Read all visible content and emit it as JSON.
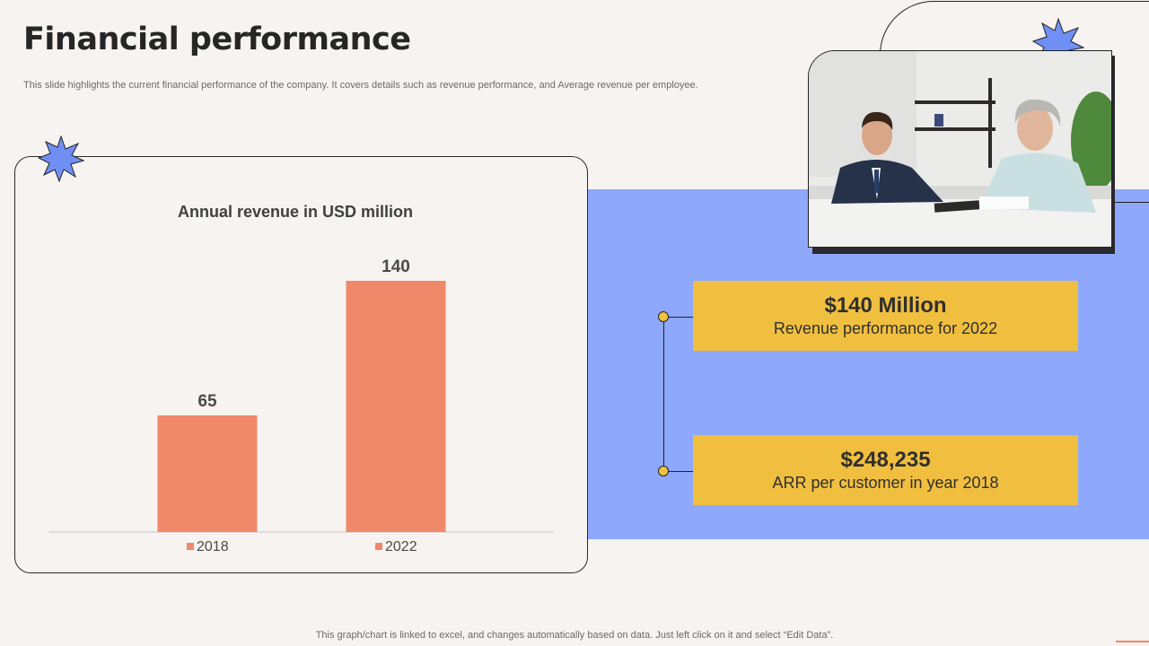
{
  "header": {
    "title": "Financial performance",
    "subtitle": "This slide highlights the current financial performance of the company. It covers details such as revenue performance, and Average revenue per employee."
  },
  "chart_data": {
    "type": "bar",
    "title": "Annual revenue in USD million",
    "categories": [
      "2018",
      "2022"
    ],
    "values": [
      65,
      140
    ],
    "data_labels": [
      "65",
      "140"
    ],
    "legend": [
      "2018",
      "2022"
    ],
    "legend_placement": "bottom",
    "ylim": [
      0,
      150
    ],
    "grid": false,
    "bar_color": "#f0896a"
  },
  "stats": [
    {
      "value": "$140 Million",
      "label": "Revenue performance for 2022"
    },
    {
      "value": "$248,235",
      "label": "ARR per customer in year 2018"
    }
  ],
  "footer": {
    "note": "This graph/chart is linked to excel, and changes automatically based on data. Just left click on it and select “Edit Data”."
  },
  "colors": {
    "background": "#f6f3f0",
    "accent_blue": "#8ea8fb",
    "accent_yellow": "#f1bf3f",
    "bar": "#f0896a",
    "star": "#6f8ff4"
  },
  "icons": [
    "star-icon",
    "star-icon"
  ]
}
